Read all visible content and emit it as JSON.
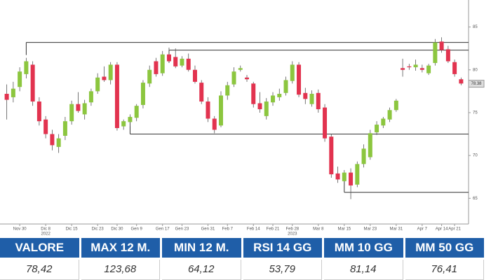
{
  "chart_data": {
    "type": "candlestick",
    "categories": [
      null,
      null,
      "Nov 30",
      null,
      null,
      null,
      "Dic 8",
      null,
      null,
      null,
      "Dic 15",
      null,
      null,
      null,
      "Dic 23",
      null,
      null,
      "Dic 30",
      null,
      null,
      "Gen 9",
      null,
      null,
      null,
      "Gen 17",
      null,
      null,
      "Gen 23",
      null,
      null,
      null,
      "Gen 31",
      null,
      null,
      "Feb 7",
      null,
      null,
      null,
      "Feb 14",
      null,
      null,
      "Feb 21",
      null,
      null,
      "Feb 28",
      null,
      null,
      null,
      "Mar 8",
      null,
      null,
      null,
      "Mar 15",
      null,
      null,
      null,
      "Mar 23",
      null,
      null,
      null,
      "Mar 31",
      null,
      null,
      null,
      "Apr 7",
      null,
      null,
      "Apr 14",
      null,
      "Apr 21",
      null
    ],
    "category_years": [
      null,
      null,
      null,
      null,
      null,
      null,
      "2022",
      null,
      null,
      null,
      null,
      null,
      null,
      null,
      null,
      null,
      null,
      null,
      null,
      null,
      null,
      null,
      null,
      null,
      null,
      null,
      null,
      null,
      null,
      null,
      null,
      null,
      null,
      null,
      null,
      null,
      null,
      null,
      null,
      null,
      null,
      null,
      null,
      null,
      "2023",
      null,
      null,
      null,
      null,
      null,
      null,
      null,
      null,
      null,
      null,
      null,
      null,
      null,
      null,
      null,
      null,
      null,
      null,
      null,
      null,
      null,
      null,
      null,
      null,
      null,
      null
    ],
    "ohlc": [
      [
        77.2,
        78.3,
        74.2,
        76.5
      ],
      [
        76.8,
        78.6,
        76.2,
        77.8
      ],
      [
        78.0,
        80.3,
        77.5,
        79.8
      ],
      [
        79.5,
        81.4,
        79.0,
        81.0
      ],
      [
        80.6,
        81.0,
        75.8,
        76.3
      ],
      [
        76.3,
        76.8,
        73.5,
        74.0
      ],
      [
        74.2,
        74.6,
        72.0,
        72.5
      ],
      [
        72.5,
        73.0,
        70.6,
        71.2
      ],
      [
        71.0,
        72.5,
        70.3,
        72.0
      ],
      [
        72.3,
        74.5,
        71.8,
        74.0
      ],
      [
        74.0,
        76.4,
        73.6,
        76.0
      ],
      [
        76.0,
        77.4,
        75.0,
        75.2
      ],
      [
        74.8,
        76.5,
        74.2,
        76.1
      ],
      [
        76.2,
        77.8,
        75.8,
        77.5
      ],
      [
        77.5,
        79.6,
        77.2,
        79.1
      ],
      [
        79.2,
        80.4,
        78.6,
        78.8
      ],
      [
        78.8,
        80.9,
        78.3,
        80.6
      ],
      [
        80.6,
        80.9,
        72.9,
        73.2
      ],
      [
        73.4,
        74.2,
        73.0,
        74.0
      ],
      [
        73.9,
        74.8,
        73.4,
        74.5
      ],
      [
        74.4,
        76.0,
        74.0,
        75.8
      ],
      [
        75.9,
        78.8,
        75.5,
        78.5
      ],
      [
        78.4,
        80.5,
        78.0,
        80.0
      ],
      [
        81.0,
        81.4,
        79.2,
        79.5
      ],
      [
        79.6,
        82.2,
        79.3,
        81.8
      ],
      [
        81.8,
        82.6,
        80.8,
        81.0
      ],
      [
        81.5,
        82.5,
        80.2,
        80.4
      ],
      [
        80.5,
        81.6,
        80.3,
        81.3
      ],
      [
        81.3,
        81.9,
        79.8,
        80.0
      ],
      [
        80.0,
        80.5,
        78.4,
        78.6
      ],
      [
        78.5,
        78.8,
        76.0,
        76.3
      ],
      [
        76.3,
        76.8,
        73.9,
        74.3
      ],
      [
        74.3,
        74.6,
        72.6,
        73.0
      ],
      [
        73.5,
        77.5,
        73.3,
        77.0
      ],
      [
        77.0,
        78.6,
        76.5,
        78.2
      ],
      [
        78.3,
        80.3,
        78.0,
        79.8
      ],
      [
        80.0,
        80.5,
        79.8,
        80.2
      ],
      [
        79.1,
        79.4,
        78.6,
        78.9
      ],
      [
        78.4,
        78.6,
        75.6,
        76.0
      ],
      [
        76.1,
        77.4,
        75.0,
        75.4
      ],
      [
        74.6,
        76.7,
        74.2,
        76.3
      ],
      [
        76.2,
        77.4,
        75.8,
        77.0
      ],
      [
        76.8,
        77.8,
        76.4,
        77.2
      ],
      [
        77.3,
        79.2,
        77.0,
        78.8
      ],
      [
        78.7,
        81.0,
        78.4,
        80.6
      ],
      [
        80.6,
        80.9,
        76.8,
        77.1
      ],
      [
        77.3,
        77.9,
        76.0,
        76.6
      ],
      [
        76.0,
        77.6,
        75.7,
        77.2
      ],
      [
        77.3,
        77.7,
        75.0,
        75.4
      ],
      [
        75.6,
        76.0,
        71.6,
        72.0
      ],
      [
        72.2,
        72.5,
        67.4,
        67.8
      ],
      [
        67.9,
        68.7,
        66.8,
        67.2
      ],
      [
        67.0,
        68.3,
        66.5,
        68.0
      ],
      [
        68.0,
        68.5,
        64.9,
        66.5
      ],
      [
        66.6,
        69.3,
        66.3,
        69.0
      ],
      [
        69.0,
        71.3,
        68.6,
        70.8
      ],
      [
        69.8,
        73.0,
        69.5,
        72.6
      ],
      [
        72.7,
        74.0,
        72.4,
        73.6
      ],
      [
        73.5,
        74.5,
        73.2,
        74.3
      ],
      [
        74.2,
        75.6,
        73.9,
        75.3
      ],
      [
        75.3,
        76.6,
        75.1,
        76.4
      ],
      [
        80.2,
        81.3,
        79.2,
        80.0
      ],
      [
        80.4,
        80.7,
        80.0,
        80.3
      ],
      [
        80.3,
        81.2,
        79.9,
        80.6
      ],
      [
        80.2,
        80.6,
        79.7,
        80.0
      ],
      [
        79.6,
        80.7,
        79.4,
        80.5
      ],
      [
        80.8,
        83.6,
        80.5,
        83.2
      ],
      [
        83.3,
        83.8,
        82.0,
        82.3
      ],
      [
        82.4,
        82.8,
        80.8,
        81.0
      ],
      [
        80.9,
        81.2,
        79.2,
        79.5
      ],
      [
        78.9,
        79.1,
        78.2,
        78.4
      ]
    ],
    "up_color": "#8cc63f",
    "down_color": "#e2334f",
    "levels": [
      {
        "value": 83.2,
        "from_index": 3
      },
      {
        "value": 82.3,
        "from_index": 25
      },
      {
        "value": 72.5,
        "from_index": 19
      },
      {
        "value": 65.7,
        "from_index": 52
      }
    ],
    "level_color": "#333333",
    "last_price": {
      "value": 78.38,
      "label": "78.38"
    },
    "ylim": [
      62,
      87.5
    ],
    "yticks": [
      65,
      70,
      75,
      80,
      85
    ],
    "y_axis_side": "right",
    "grid": false
  },
  "table": {
    "header": [
      "VALORE",
      "MAX 12 M.",
      "MIN 12 M.",
      "RSI 14 GG",
      "MM 10 GG",
      "MM 50 GG"
    ],
    "rows": [
      [
        "78,42",
        "123,68",
        "64,12",
        "53,79",
        "81,14",
        "76,41"
      ]
    ]
  }
}
